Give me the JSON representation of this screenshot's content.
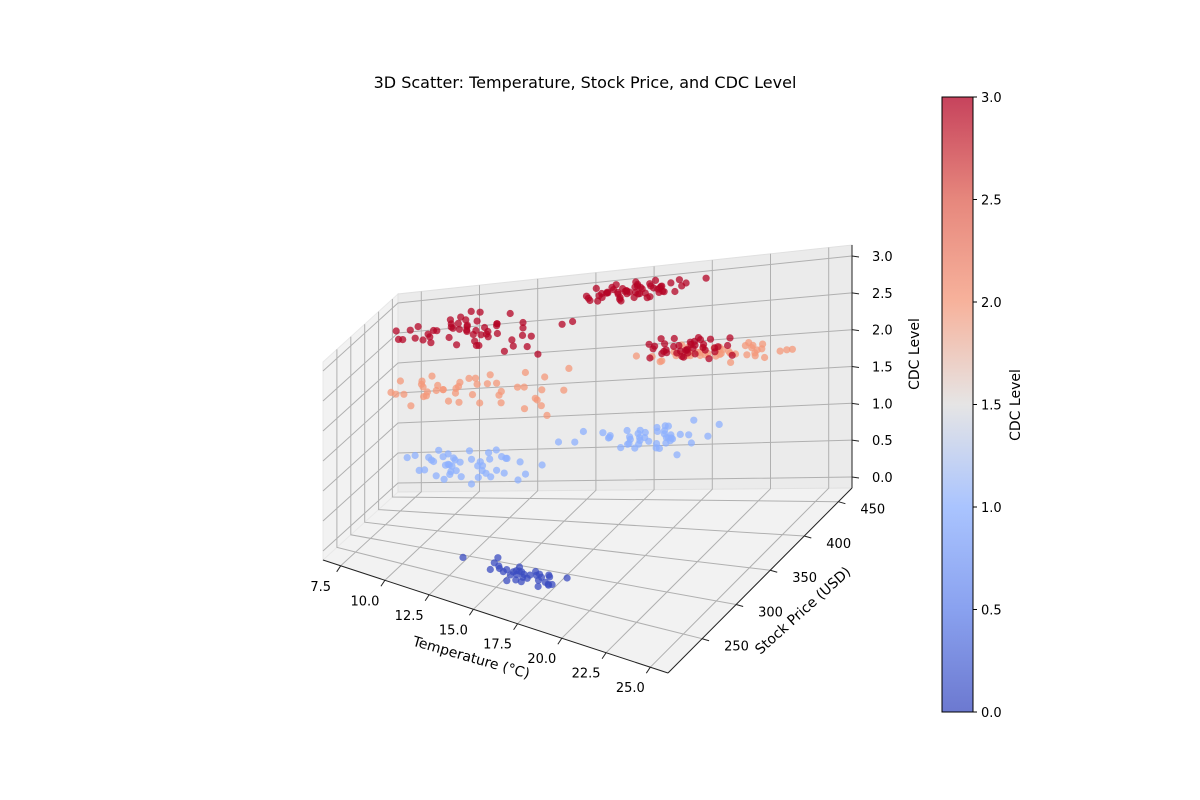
{
  "chart_data": {
    "type": "scatter",
    "title": "3D Scatter: Temperature, Stock Price, and CDC Level",
    "xlabel": "Temperature (°C)",
    "ylabel": "Stock Price (USD)",
    "zlabel": "CDC Level",
    "colorbar_label": "CDC Level",
    "colormap": "coolwarm",
    "xlim": [
      6.5,
      26
    ],
    "ylim": [
      200,
      470
    ],
    "zlim": [
      -0.15,
      3.15
    ],
    "clim": [
      0,
      3
    ],
    "xticks": [
      "7.5",
      "10.0",
      "12.5",
      "15.0",
      "17.5",
      "20.0",
      "22.5",
      "25.0"
    ],
    "yticks": [
      "250",
      "300",
      "350",
      "400",
      "450"
    ],
    "zticks": [
      "0.0",
      "0.5",
      "1.0",
      "1.5",
      "2.0",
      "2.5",
      "3.0"
    ],
    "cbar_ticks": [
      "0.0",
      "0.5",
      "1.0",
      "1.5",
      "2.0",
      "2.5",
      "3.0"
    ],
    "grid": true,
    "groups": [
      {
        "z": 0,
        "x_center": 16.0,
        "x_spread": 2.5,
        "y_center": 265,
        "y_spread": 20,
        "count": 35
      },
      {
        "z": 1,
        "x_center": 11.5,
        "x_spread": 3.0,
        "y_center": 340,
        "y_spread": 40,
        "count": 45
      },
      {
        "z": 1,
        "x_center": 18.5,
        "x_spread": 3.0,
        "y_center": 420,
        "y_spread": 25,
        "count": 45
      },
      {
        "z": 2,
        "x_center": 12.0,
        "x_spread": 5.0,
        "y_center": 370,
        "y_spread": 45,
        "count": 45
      },
      {
        "z": 2,
        "x_center": 21.0,
        "x_spread": 3.0,
        "y_center": 445,
        "y_spread": 15,
        "count": 45
      },
      {
        "z": 3,
        "x_center": 11.5,
        "x_spread": 4.0,
        "y_center": 360,
        "y_spread": 50,
        "count": 55
      },
      {
        "z": 3,
        "x_center": 17.0,
        "x_spread": 2.5,
        "y_center": 440,
        "y_spread": 20,
        "count": 55
      },
      {
        "z": 3,
        "x_center": 22.5,
        "x_spread": 2.0,
        "y_center": 330,
        "y_spread": 25,
        "count": 40
      }
    ]
  }
}
